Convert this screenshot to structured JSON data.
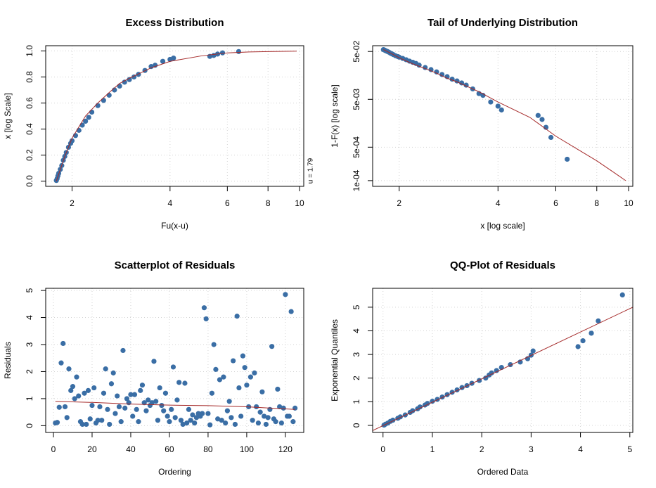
{
  "chart_data": [
    {
      "type": "scatter",
      "title": "Excess Distribution",
      "x_label": "Fu(x-u)",
      "y_label": "x [log Scale]",
      "annotation": "u = 1.79",
      "xlog": true,
      "ylog": false,
      "grid": true,
      "xlim": [
        1.66,
        10.3
      ],
      "ylim": [
        -0.04,
        1.04
      ],
      "xticks": [
        2,
        4,
        6,
        8,
        10
      ],
      "yticks": [
        {
          "value": 0,
          "label": "0.0"
        },
        0.2,
        0.4,
        0.6,
        0.8,
        {
          "value": 1,
          "label": "1.0"
        }
      ],
      "series": [
        {
          "style": "points",
          "color": "#3a6ea5",
          "x": [
            1.79,
            1.8,
            1.81,
            1.82,
            1.84,
            1.86,
            1.88,
            1.9,
            1.92,
            1.95,
            1.98,
            2.0,
            2.05,
            2.1,
            2.15,
            2.2,
            2.25,
            2.3,
            2.4,
            2.5,
            2.6,
            2.7,
            2.8,
            2.9,
            3.0,
            3.1,
            3.2,
            3.35,
            3.5,
            3.6,
            3.8,
            4.0,
            4.1,
            5.3,
            5.45,
            5.6,
            5.8,
            6.5
          ],
          "values": [
            0.005,
            0.02,
            0.04,
            0.06,
            0.09,
            0.12,
            0.16,
            0.19,
            0.22,
            0.26,
            0.29,
            0.31,
            0.35,
            0.39,
            0.43,
            0.46,
            0.49,
            0.53,
            0.58,
            0.62,
            0.66,
            0.7,
            0.73,
            0.76,
            0.78,
            0.8,
            0.82,
            0.85,
            0.88,
            0.89,
            0.92,
            0.935,
            0.945,
            0.958,
            0.965,
            0.976,
            0.985,
            0.995
          ]
        },
        {
          "style": "line",
          "color": "#a52a2a",
          "x": [
            1.79,
            1.9,
            2.0,
            2.2,
            2.4,
            2.6,
            2.8,
            3.0,
            3.5,
            4,
            5,
            6,
            7,
            8,
            9,
            9.8
          ],
          "values": [
            0,
            0.19,
            0.33,
            0.5,
            0.6,
            0.68,
            0.75,
            0.79,
            0.87,
            0.92,
            0.962,
            0.985,
            0.992,
            0.995,
            0.997,
            0.998
          ]
        }
      ]
    },
    {
      "type": "scatter",
      "title": "Tail of Underlying Distribution",
      "x_label": "x [log scale]",
      "y_label": "1-F(x) [log scale]",
      "xlog": true,
      "ylog": true,
      "grid": true,
      "xlim": [
        1.66,
        10.3
      ],
      "ylim": [
        7.6e-05,
        0.066
      ],
      "xticks": [
        2,
        4,
        6,
        8,
        10
      ],
      "yticks": [
        {
          "value": 0.05,
          "label": "5e-02"
        },
        {
          "value": 0.005,
          "label": "5e-03"
        },
        {
          "value": 0.0005,
          "label": "5e-04"
        },
        {
          "value": 0.0001,
          "label": "1e-04"
        }
      ],
      "series": [
        {
          "style": "points",
          "color": "#3a6ea5",
          "x": [
            1.79,
            1.8,
            1.81,
            1.82,
            1.84,
            1.86,
            1.88,
            1.9,
            1.92,
            1.95,
            1.98,
            2.0,
            2.05,
            2.1,
            2.15,
            2.2,
            2.25,
            2.3,
            2.4,
            2.5,
            2.6,
            2.7,
            2.8,
            2.9,
            3.0,
            3.1,
            3.2,
            3.35,
            3.5,
            3.6,
            3.8,
            4.0,
            4.1,
            5.3,
            5.45,
            5.6,
            5.8,
            6.5
          ],
          "values": [
            0.0547,
            0.0539,
            0.0528,
            0.0517,
            0.0501,
            0.0484,
            0.0462,
            0.0446,
            0.0429,
            0.0407,
            0.0391,
            0.038,
            0.0358,
            0.0336,
            0.0314,
            0.0297,
            0.0281,
            0.0259,
            0.0231,
            0.0209,
            0.0187,
            0.0165,
            0.0149,
            0.0132,
            0.0121,
            0.011,
            0.0099,
            0.00825,
            0.0066,
            0.00605,
            0.0044,
            0.0036,
            0.003,
            0.0023,
            0.0019,
            0.0013,
            0.0008,
            0.00028
          ]
        },
        {
          "style": "line",
          "color": "#a52a2a",
          "x": [
            1.79,
            1.9,
            2.0,
            2.2,
            2.4,
            2.6,
            2.8,
            3.0,
            3.5,
            4,
            5,
            6,
            7,
            8,
            9,
            9.8
          ],
          "values": [
            0.055,
            0.0446,
            0.0369,
            0.0275,
            0.022,
            0.0176,
            0.0138,
            0.0116,
            0.0072,
            0.0044,
            0.0021,
            0.00085,
            0.00045,
            0.00026,
            0.00015,
            0.0001
          ]
        }
      ]
    },
    {
      "type": "scatter",
      "title": "Scatterplot of Residuals",
      "x_label": "Ordering",
      "y_label": "Residuals",
      "xlog": false,
      "ylog": false,
      "grid": true,
      "xlim": [
        -4,
        129.5
      ],
      "ylim": [
        -0.25,
        5.08
      ],
      "xticks": [
        0,
        20,
        40,
        60,
        80,
        100,
        120
      ],
      "yticks": [
        0,
        1,
        2,
        3,
        4,
        5
      ],
      "series": [
        {
          "style": "points",
          "color": "#3a6ea5",
          "x": [
            1,
            2,
            3,
            4,
            5,
            6,
            7,
            8,
            9,
            10,
            11,
            12,
            13,
            14,
            15,
            16,
            17,
            18,
            19,
            20,
            21,
            22,
            23,
            24,
            25,
            26,
            27,
            28,
            29,
            30,
            31,
            32,
            33,
            34,
            35,
            36,
            37,
            38,
            39,
            40,
            41,
            42,
            43,
            44,
            45,
            46,
            47,
            48,
            49,
            50,
            51,
            52,
            53,
            54,
            55,
            56,
            57,
            58,
            59,
            60,
            61,
            62,
            63,
            64,
            65,
            66,
            67,
            68,
            69,
            70,
            71,
            72,
            73,
            74,
            75,
            76,
            77,
            78,
            79,
            80,
            81,
            82,
            83,
            84,
            85,
            86,
            87,
            88,
            89,
            90,
            91,
            92,
            93,
            94,
            95,
            96,
            97,
            98,
            99,
            100,
            101,
            102,
            103,
            104,
            105,
            106,
            107,
            108,
            109,
            110,
            111,
            112,
            113,
            114,
            115,
            116,
            117,
            118,
            119,
            120,
            121,
            122,
            123,
            124,
            125
          ],
          "values": [
            0.1,
            0.12,
            0.68,
            2.32,
            3.04,
            0.7,
            0.3,
            2.1,
            1.3,
            1.45,
            1.0,
            1.8,
            1.1,
            0.15,
            0.05,
            1.2,
            0.05,
            1.3,
            0.25,
            0.75,
            1.4,
            0.1,
            0.2,
            0.7,
            0.2,
            1.2,
            2.1,
            0.6,
            0.05,
            1.55,
            1.95,
            0.45,
            1.1,
            0.7,
            0.15,
            2.78,
            0.65,
            1.0,
            0.85,
            1.15,
            0.35,
            1.15,
            0.6,
            0.15,
            1.3,
            1.5,
            0.85,
            0.55,
            0.95,
            0.75,
            0.85,
            2.38,
            0.9,
            0.2,
            1.4,
            0.75,
            0.55,
            1.2,
            0.35,
            0.15,
            0.6,
            2.17,
            0.3,
            0.95,
            1.6,
            0.2,
            0.05,
            1.57,
            0.1,
            0.6,
            0.2,
            0.4,
            0.1,
            0.3,
            0.45,
            0.35,
            0.45,
            4.36,
            3.95,
            0.45,
            0.03,
            1.2,
            3.0,
            2.08,
            0.25,
            1.7,
            0.2,
            1.8,
            0.1,
            0.55,
            0.9,
            0.3,
            2.4,
            0.05,
            4.05,
            1.4,
            0.35,
            2.58,
            2.15,
            1.5,
            0.7,
            1.8,
            0.2,
            1.95,
            0.7,
            0.1,
            0.5,
            1.25,
            0.35,
            0.05,
            0.3,
            0.6,
            2.93,
            0.25,
            0.15,
            1.35,
            0.7,
            0.1,
            0.65,
            4.85,
            0.35,
            0.35,
            4.22,
            0.15,
            0.65
          ]
        },
        {
          "style": "line",
          "color": "#a52a2a",
          "x": [
            1,
            20,
            40,
            60,
            80,
            100,
            125
          ],
          "values": [
            0.9,
            0.86,
            0.8,
            0.76,
            0.74,
            0.7,
            0.6
          ]
        }
      ]
    },
    {
      "type": "scatter",
      "title": "QQ-Plot of Residuals",
      "x_label": "Ordered Data",
      "y_label": "Exponential Quantiles",
      "xlog": false,
      "ylog": false,
      "grid": true,
      "xlim": [
        -0.21,
        5.06
      ],
      "ylim": [
        -0.3,
        5.8
      ],
      "xticks": [
        0,
        1,
        2,
        3,
        4,
        5
      ],
      "yticks": [
        0,
        1,
        2,
        3,
        4,
        5
      ],
      "series": [
        {
          "style": "points",
          "color": "#3a6ea5",
          "x": [
            0.02,
            0.05,
            0.1,
            0.15,
            0.2,
            0.3,
            0.35,
            0.45,
            0.55,
            0.6,
            0.7,
            0.75,
            0.85,
            0.9,
            1.0,
            1.1,
            1.2,
            1.3,
            1.4,
            1.5,
            1.6,
            1.7,
            1.8,
            1.95,
            2.08,
            2.15,
            2.2,
            2.3,
            2.4,
            2.58,
            2.78,
            2.93,
            3.0,
            3.04,
            3.95,
            4.05,
            4.22,
            4.36,
            4.85
          ],
          "values": [
            0.01,
            0.05,
            0.1,
            0.17,
            0.22,
            0.3,
            0.36,
            0.44,
            0.55,
            0.62,
            0.7,
            0.78,
            0.86,
            0.93,
            1.02,
            1.1,
            1.2,
            1.3,
            1.4,
            1.5,
            1.6,
            1.68,
            1.78,
            1.9,
            2.0,
            2.13,
            2.22,
            2.32,
            2.45,
            2.57,
            2.68,
            2.82,
            2.97,
            3.15,
            3.33,
            3.58,
            3.9,
            4.42,
            5.52
          ]
        },
        {
          "style": "line",
          "color": "#a52a2a",
          "x": [
            -0.21,
            5.06
          ],
          "values": [
            -0.22,
            5.0
          ]
        }
      ]
    }
  ]
}
